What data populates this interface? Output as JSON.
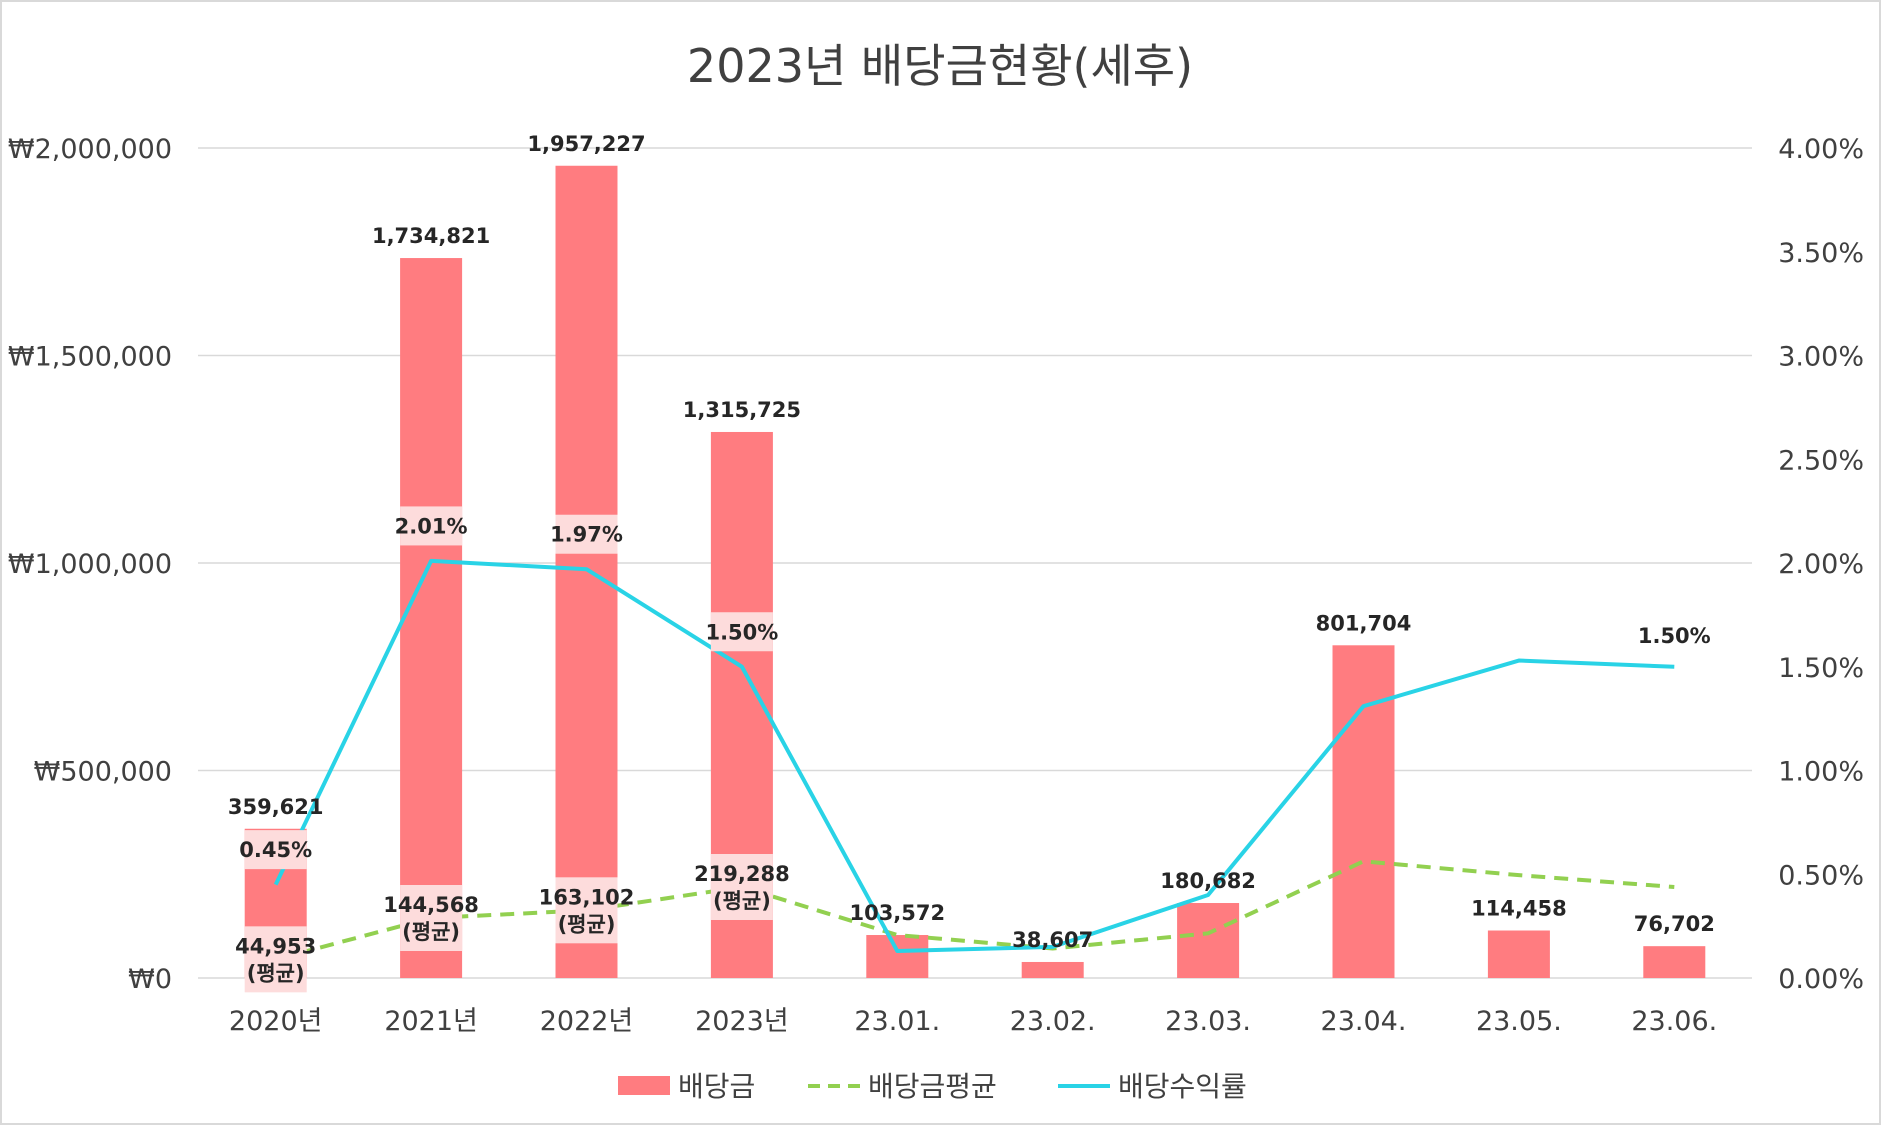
{
  "chart_data": {
    "type": "bar",
    "title": "2023년 배당금현황(세후)",
    "categories": [
      "2020년",
      "2021년",
      "2022년",
      "2023년",
      "23.01.",
      "23.02.",
      "23.03.",
      "23.04.",
      "23.05.",
      "23.06."
    ],
    "y_left": {
      "ylim": [
        0,
        2000000
      ],
      "ticks": [
        0,
        500000,
        1000000,
        1500000,
        2000000
      ],
      "tick_labels": [
        "₩0",
        "₩500,000",
        "₩1,000,000",
        "₩1,500,000",
        "₩2,000,000"
      ]
    },
    "y_right": {
      "ylim": [
        0,
        4.0
      ],
      "ticks": [
        0,
        0.5,
        1.0,
        1.5,
        2.0,
        2.5,
        3.0,
        3.5,
        4.0
      ],
      "tick_labels": [
        "0.00%",
        "0.50%",
        "1.00%",
        "1.50%",
        "2.00%",
        "2.50%",
        "3.00%",
        "3.50%",
        "4.00%"
      ]
    },
    "grid": true,
    "legend_position": "bottom",
    "series": [
      {
        "name": "배당금",
        "type": "bar",
        "axis": "left",
        "color": "#FF7C80",
        "values": [
          359621,
          1734821,
          1957227,
          1315725,
          103572,
          38607,
          180682,
          801704,
          114458,
          76702
        ],
        "labels": [
          "359,621",
          "1,734,821",
          "1,957,227",
          "1,315,725",
          "103,572",
          "38,607",
          "180,682",
          "801,704",
          "114,458",
          "76,702"
        ]
      },
      {
        "name": "배당금평균",
        "type": "line",
        "dashed": true,
        "axis": "left",
        "color": "#92D050",
        "values": [
          44953,
          144568,
          163102,
          219288,
          103572,
          71090,
          107620,
          281141,
          247804,
          219288
        ],
        "labeled": [
          {
            "index": 0,
            "value_label": "44,953",
            "tag": "(평균)"
          },
          {
            "index": 1,
            "value_label": "144,568",
            "tag": "(평균)"
          },
          {
            "index": 2,
            "value_label": "163,102",
            "tag": "(평균)"
          },
          {
            "index": 3,
            "value_label": "219,288",
            "tag": "(평균)"
          }
        ]
      },
      {
        "name": "배당수익률",
        "type": "line",
        "axis": "right",
        "color": "#29D3E6",
        "values": [
          0.45,
          2.01,
          1.97,
          1.5,
          0.13,
          0.15,
          0.4,
          1.31,
          1.53,
          1.5
        ],
        "labeled": [
          {
            "index": 0,
            "label": "0.45%"
          },
          {
            "index": 1,
            "label": "2.01%"
          },
          {
            "index": 2,
            "label": "1.97%"
          },
          {
            "index": 3,
            "label": "1.50%"
          },
          {
            "index": 9,
            "label": "1.50%"
          }
        ]
      }
    ]
  }
}
